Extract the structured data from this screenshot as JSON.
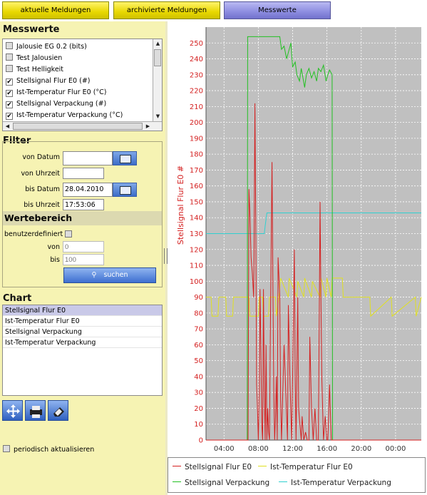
{
  "tabs": [
    {
      "label": "aktuelle Meldungen"
    },
    {
      "label": "archivierte Meldungen"
    },
    {
      "label": "Messwerte"
    }
  ],
  "messwerte": {
    "title": "Messwerte",
    "items": [
      {
        "label": "Jalousie EG 0.2 (bits)",
        "checked": false
      },
      {
        "label": "Test Jalousien",
        "checked": false
      },
      {
        "label": "Test Helligkeit",
        "checked": false
      },
      {
        "label": "Stellsignal Flur E0 (#)",
        "checked": true
      },
      {
        "label": "Ist-Temperatur Flur E0 (°C)",
        "checked": true
      },
      {
        "label": "Stellsignal Verpackung (#)",
        "checked": true
      },
      {
        "label": "Ist-Temperatur Verpackung (°C)",
        "checked": true
      }
    ]
  },
  "filter": {
    "title": "Filter",
    "von_datum_label": "von Datum",
    "von_datum_value": "",
    "von_uhrzeit_label": "von Uhrzeit",
    "von_uhrzeit_value": "",
    "bis_datum_label": "bis Datum",
    "bis_datum_value": "28.04.2010",
    "bis_uhrzeit_label": "bis Uhrzeit",
    "bis_uhrzeit_value": "17:53:06"
  },
  "wertebereich": {
    "title": "Wertebereich",
    "benutzerdefiniert_label": "benutzerdefiniert",
    "von_label": "von",
    "von_placeholder": "0",
    "bis_label": "bis",
    "bis_placeholder": "100",
    "search_label": "suchen"
  },
  "chart_panel": {
    "title": "Chart",
    "items": [
      "Stellsignal Flur E0",
      "Ist-Temperatur Flur E0",
      "Stellsignal Verpackung",
      "Ist-Temperatur Verpackung"
    ],
    "selected": 0
  },
  "periodic_label": "periodisch aktualisieren",
  "colors": {
    "stellsignal_flur": "#d42020",
    "ist_temp_flur": "#e0e020",
    "stellsignal_verpackung": "#22c022",
    "ist_temp_verpackung": "#30d0d0",
    "plot_bg": "#c0c0c0",
    "axis_label": "#d42020"
  },
  "chart_data": {
    "type": "line",
    "ylabel": "Stellsignal Flur E0 #",
    "xlabel": "",
    "ylim": [
      0,
      260
    ],
    "yticks": [
      0,
      10,
      20,
      30,
      40,
      50,
      60,
      70,
      80,
      90,
      100,
      110,
      120,
      130,
      140,
      150,
      160,
      170,
      180,
      190,
      200,
      210,
      220,
      230,
      240,
      250
    ],
    "xticks": [
      "04:00",
      "08:00",
      "12:00",
      "16:00",
      "20:00",
      "00:00"
    ],
    "x_unit": "hour of day",
    "x_range": [
      1.9,
      27.0
    ],
    "grid": true,
    "legend_position": "bottom",
    "series": [
      {
        "name": "Stellsignal Flur E0",
        "x": [
          1.9,
          6.8,
          6.9,
          7.0,
          7.15,
          7.3,
          7.45,
          7.5,
          7.6,
          7.7,
          7.8,
          7.9,
          8.0,
          8.1,
          8.2,
          8.3,
          8.4,
          8.5,
          8.6,
          8.7,
          8.8,
          8.9,
          9.0,
          9.1,
          9.2,
          9.3,
          9.4,
          9.6,
          9.7,
          9.8,
          9.9,
          10.0,
          10.1,
          10.2,
          10.3,
          10.5,
          10.6,
          10.7,
          11.0,
          11.2,
          11.4,
          11.5,
          11.7,
          11.9,
          12.2,
          12.3,
          12.4,
          12.6,
          12.7,
          13.0,
          13.1,
          13.3,
          13.5,
          13.7,
          13.9,
          14.0,
          14.2,
          14.4,
          14.6,
          14.8,
          15.0,
          15.2,
          15.3,
          15.4,
          15.6,
          15.8,
          16.0,
          16.1,
          16.3,
          16.5,
          16.7,
          27.0
        ],
        "values": [
          0,
          0,
          158,
          145,
          115,
          105,
          90,
          120,
          212,
          135,
          35,
          20,
          0,
          30,
          95,
          55,
          10,
          0,
          95,
          30,
          0,
          60,
          0,
          20,
          5,
          0,
          65,
          175,
          100,
          30,
          0,
          15,
          40,
          0,
          115,
          90,
          25,
          0,
          60,
          30,
          0,
          85,
          35,
          0,
          120,
          40,
          0,
          90,
          20,
          0,
          15,
          0,
          5,
          0,
          0,
          65,
          20,
          0,
          20,
          0,
          0,
          150,
          90,
          40,
          0,
          15,
          0,
          0,
          35,
          0,
          0,
          0
        ]
      },
      {
        "name": "Ist-Temperatur Flur E0",
        "x": [
          1.9,
          2.5,
          2.6,
          3.3,
          3.4,
          4.2,
          4.3,
          5.0,
          5.1,
          6.9,
          7.0,
          7.3,
          7.6,
          8.0,
          8.1,
          8.5,
          8.6,
          9.2,
          9.3,
          10.0,
          10.1,
          10.4,
          10.6,
          11.5,
          11.6,
          12.5,
          12.6,
          13.3,
          13.4,
          14.2,
          14.3,
          15.2,
          15.3,
          15.9,
          16.0,
          16.5,
          16.6,
          17.8,
          17.9,
          21.0,
          21.1,
          23.5,
          23.6,
          26.3,
          26.4,
          27.0
        ],
        "values": [
          90,
          90,
          78,
          78,
          90,
          90,
          78,
          78,
          90,
          90,
          78,
          78,
          78,
          78,
          90,
          90,
          78,
          78,
          90,
          90,
          78,
          90,
          102,
          90,
          102,
          90,
          100,
          90,
          102,
          90,
          100,
          90,
          102,
          90,
          102,
          90,
          102,
          102,
          90,
          90,
          78,
          90,
          78,
          90,
          78,
          90
        ]
      },
      {
        "name": "Stellsignal Verpackung",
        "x": [
          1.9,
          6.7,
          6.75,
          8.5,
          9.5,
          10.5,
          10.7,
          11.0,
          11.3,
          11.5,
          11.8,
          12.0,
          12.3,
          12.5,
          12.8,
          13.0,
          13.2,
          13.4,
          13.6,
          13.9,
          14.2,
          14.5,
          14.8,
          15.0,
          15.3,
          15.6,
          15.9,
          16.1,
          16.3,
          16.6,
          16.65,
          27.0
        ],
        "values": [
          0,
          0,
          254,
          254,
          254,
          254,
          246,
          248,
          240,
          244,
          250,
          235,
          238,
          230,
          226,
          234,
          228,
          222,
          230,
          234,
          228,
          232,
          226,
          234,
          232,
          236,
          226,
          230,
          233,
          230,
          0,
          0
        ]
      },
      {
        "name": "Ist-Temperatur Verpackung",
        "x": [
          1.9,
          8.7,
          8.8,
          9.0,
          9.1,
          27.0
        ],
        "values": [
          130,
          130,
          135,
          143,
          143,
          143
        ]
      }
    ]
  }
}
